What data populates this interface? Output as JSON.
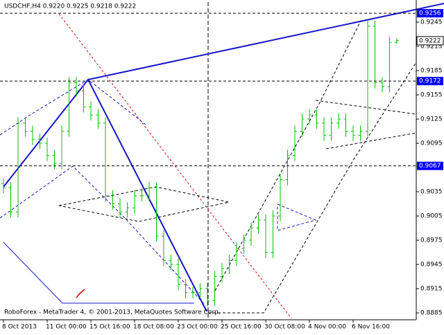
{
  "chart_data": {
    "type": "ohlc",
    "title": "USDCHF,H4  0.9220 0.9225 0.9218 0.9222",
    "footer": "RoboForex - MetaTrader 4, © 2001-2013, MetaQuotes Software Corp.",
    "color": "#00c000",
    "categories": [
      "8 Oct 2013",
      null,
      null,
      null,
      null,
      null,
      "11 Oct 00:00",
      null,
      null,
      null,
      null,
      null,
      "15 Oct 16:00",
      null,
      null,
      null,
      null,
      null,
      "18 Oct 08:00",
      null,
      null,
      null,
      null,
      null,
      "23 Oct 00:00",
      null,
      null,
      null,
      null,
      null,
      "25 Oct 16:00",
      null,
      null,
      null,
      null,
      null,
      "30 Oct 08:00",
      null,
      null,
      null,
      null,
      null,
      "4 Nov 00:00",
      null,
      null,
      null,
      null,
      null,
      "6 Nov 16:00",
      null,
      null,
      null,
      null,
      null,
      null
    ],
    "open": [
      0.9045,
      0.904,
      0.901,
      0.912,
      0.911,
      0.91,
      0.9095,
      0.908,
      0.907,
      0.911,
      0.917,
      0.916,
      0.914,
      0.913,
      0.912,
      0.903,
      0.902,
      0.901,
      0.9015,
      0.903,
      0.903,
      0.904,
      0.898,
      0.895,
      0.8945,
      0.892,
      0.891,
      0.891,
      0.8915,
      0.89,
      0.893,
      0.894,
      0.895,
      0.8965,
      0.8975,
      0.899,
      0.9,
      0.896,
      0.9005,
      0.905,
      0.908,
      0.911,
      0.9125,
      0.913,
      0.912,
      0.9105,
      0.912,
      0.9125,
      0.911,
      0.9105,
      0.911,
      0.924,
      0.917,
      0.9165,
      0.922
    ],
    "high": [
      0.9052,
      0.9047,
      0.9127,
      0.9127,
      0.9117,
      0.9107,
      0.9102,
      0.9087,
      0.9117,
      0.9177,
      0.9177,
      0.9167,
      0.9147,
      0.9137,
      0.9127,
      0.9037,
      0.9027,
      0.9022,
      0.9037,
      0.9037,
      0.9047,
      0.9047,
      0.8987,
      0.8957,
      0.8952,
      0.8927,
      0.8917,
      0.8922,
      0.8922,
      0.8937,
      0.8947,
      0.8957,
      0.8972,
      0.8982,
      0.8997,
      0.9007,
      0.9007,
      0.9012,
      0.9057,
      0.9087,
      0.9117,
      0.9132,
      0.9137,
      0.9137,
      0.9127,
      0.9127,
      0.9132,
      0.9132,
      0.9117,
      0.9117,
      0.9247,
      0.9247,
      0.9177,
      0.9227,
      0.9225
    ],
    "low": [
      0.9033,
      0.9003,
      0.9003,
      0.9103,
      0.9093,
      0.9088,
      0.9073,
      0.9063,
      0.9063,
      0.9103,
      0.9153,
      0.9133,
      0.9123,
      0.9113,
      0.9023,
      0.9013,
      0.9003,
      0.9003,
      0.9008,
      0.9023,
      0.9023,
      0.8973,
      0.8943,
      0.8938,
      0.8913,
      0.8903,
      0.8903,
      0.8903,
      0.8893,
      0.8893,
      0.8923,
      0.8933,
      0.8943,
      0.8958,
      0.8968,
      0.8983,
      0.8953,
      0.8953,
      0.8998,
      0.9043,
      0.9073,
      0.9103,
      0.9118,
      0.9113,
      0.9098,
      0.9098,
      0.9113,
      0.9103,
      0.9098,
      0.9098,
      0.9103,
      0.9163,
      0.9158,
      0.9158,
      0.9218
    ],
    "close": [
      0.904,
      0.901,
      0.912,
      0.911,
      0.91,
      0.9095,
      0.908,
      0.907,
      0.911,
      0.917,
      0.916,
      0.914,
      0.913,
      0.912,
      0.903,
      0.902,
      0.901,
      0.9015,
      0.903,
      0.903,
      0.904,
      0.898,
      0.895,
      0.8945,
      0.892,
      0.891,
      0.891,
      0.8915,
      0.89,
      0.893,
      0.894,
      0.895,
      0.8965,
      0.8975,
      0.899,
      0.9,
      0.896,
      0.9005,
      0.905,
      0.908,
      0.911,
      0.9125,
      0.913,
      0.912,
      0.9105,
      0.912,
      0.9125,
      0.911,
      0.9105,
      0.911,
      0.924,
      0.917,
      0.9165,
      0.922,
      0.9222
    ],
    "ylim": [
      0.88782,
      0.92724
    ],
    "yticks": [
      0.8885,
      0.8915,
      0.8945,
      0.8975,
      0.9005,
      0.9035,
      0.9095,
      0.9125,
      0.9155,
      0.9185,
      0.9215,
      0.9245
    ],
    "hlines": [
      {
        "value": 0.9256,
        "color": "#0000ff"
      },
      {
        "value": 0.9172,
        "color": "#0000ff"
      },
      {
        "value": 0.9067,
        "color": "#0000ff"
      }
    ],
    "price_line": {
      "value": 0.9222,
      "color": "#000000"
    }
  }
}
